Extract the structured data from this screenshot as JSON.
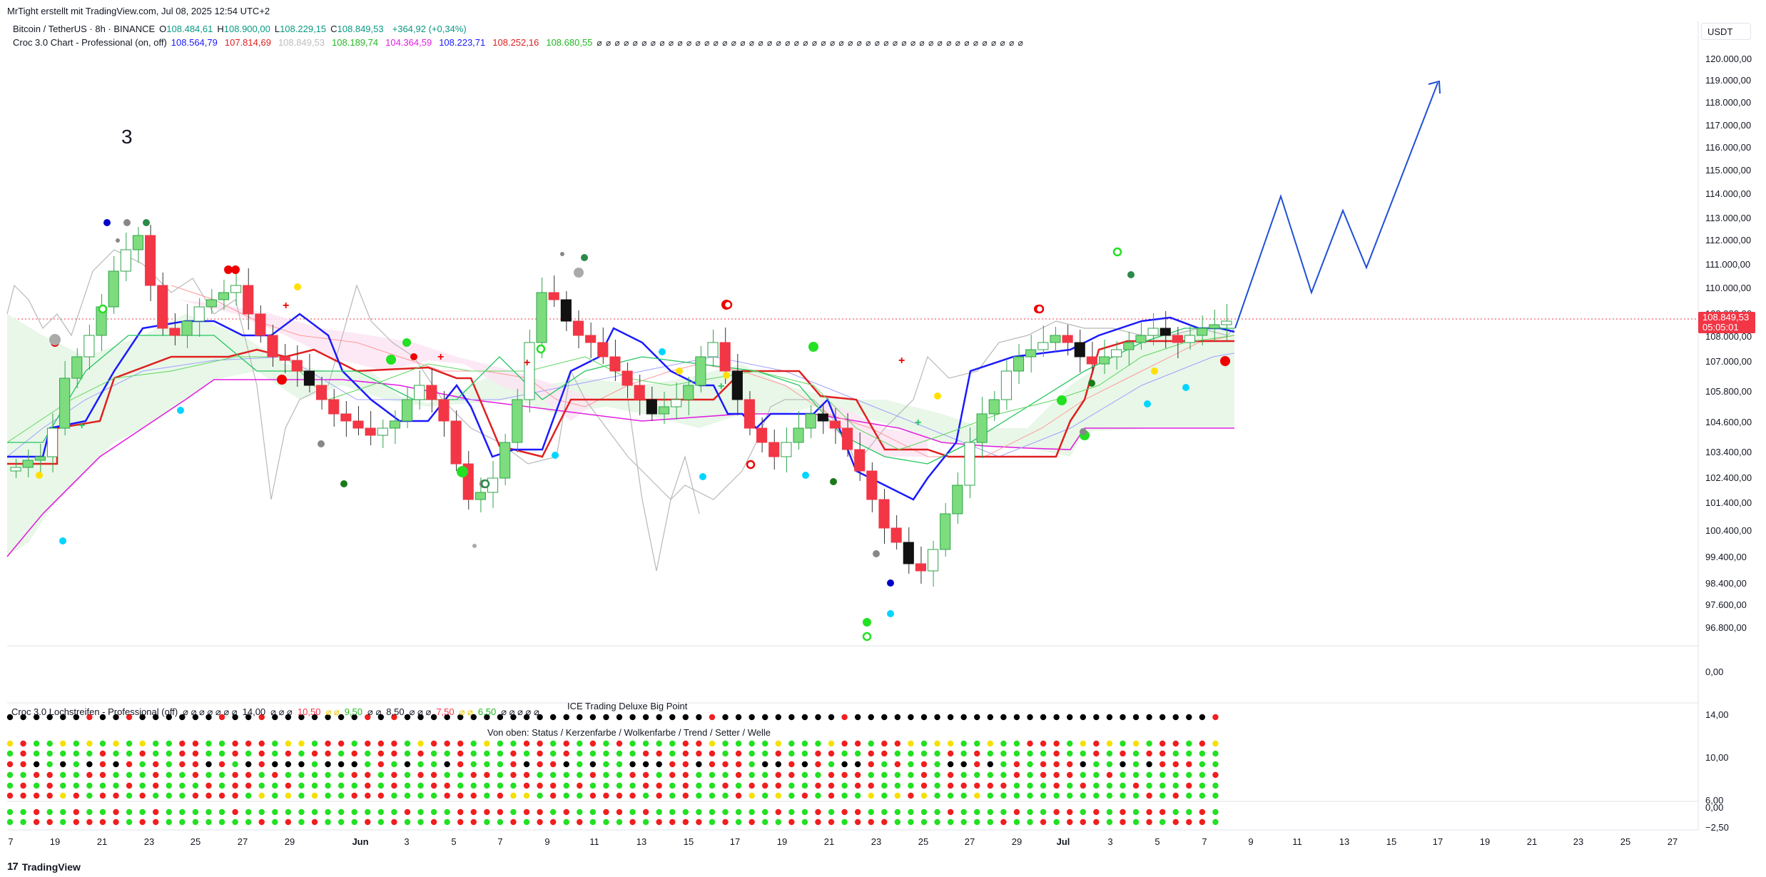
{
  "header": {
    "attribution": "MrTight erstellt mit TradingView.com, Jul 08, 2025 12:54 UTC+2",
    "currency": "USDT"
  },
  "legend": {
    "symbol": "Bitcoin / TetherUS · 8h · BINANCE",
    "ohlc": [
      {
        "label": "O",
        "value": "108.484,61"
      },
      {
        "label": "H",
        "value": "108.900,00"
      },
      {
        "label": "L",
        "value": "108.229,15"
      },
      {
        "label": "C",
        "value": "108.849,53"
      }
    ],
    "change": "+364,92 (+0,34%)",
    "indicator_name": "Croc 3.0 Chart - Professional (on, off)",
    "indicator_values": [
      {
        "value": "108.564,79",
        "color": "#1a1aff"
      },
      {
        "value": "107.814,69",
        "color": "#e02020"
      },
      {
        "value": "108.849,53",
        "color": "#bdbdbd"
      },
      {
        "value": "108.189,74",
        "color": "#22b822"
      },
      {
        "value": "104.364,59",
        "color": "#e020e0"
      },
      {
        "value": "108.223,71",
        "color": "#1a1aff"
      },
      {
        "value": "108.252,16",
        "color": "#e02020"
      },
      {
        "value": "108.680,55",
        "color": "#22b822"
      }
    ],
    "empty_values": "⌀ ⌀ ⌀ ⌀ ⌀ ⌀ ⌀ ⌀ ⌀ ⌀ ⌀ ⌀ ⌀ ⌀ ⌀ ⌀ ⌀ ⌀ ⌀ ⌀ ⌀ ⌀ ⌀ ⌀ ⌀ ⌀ ⌀ ⌀ ⌀ ⌀ ⌀ ⌀ ⌀ ⌀ ⌀ ⌀ ⌀ ⌀ ⌀ ⌀ ⌀ ⌀ ⌀ ⌀ ⌀ ⌀ ⌀ ⌀"
  },
  "annotation_label": "3",
  "price_axis": {
    "ticks": [
      "120.000,00",
      "119.000,00",
      "118.000,00",
      "117.000,00",
      "116.000,00",
      "115.000,00",
      "114.000,00",
      "113.000,00",
      "112.000,00",
      "111.000,00",
      "110.000,00",
      "109.000,00",
      "108.000,00",
      "107.000,00",
      "105.800,00",
      "104.600,00",
      "103.400,00",
      "102.400,00",
      "101.400,00",
      "100.400,00",
      "99.400,00",
      "98.400,00",
      "97.600,00",
      "96.800,00"
    ],
    "current_price": "108.849,53",
    "countdown": "05:05:01"
  },
  "lower_panels": {
    "panel1_axis_tick": "0,00",
    "panel2_name": "Croc 3.0 Lochstreifen - Professional (off)",
    "panel2_values": [
      "⌀ ⌀ ⌀ ⌀ ⌀ ⌀ ⌀",
      "14,00",
      "⌀ ⌀ ⌀",
      "10,50",
      "⌀ ⌀",
      "9,50",
      "⌀ ⌀",
      "8,50",
      "⌀ ⌀ ⌀",
      "7,50",
      "⌀ ⌀",
      "6,50",
      "⌀ ⌀ ⌀ ⌀ ⌀"
    ],
    "panel2_value_colors": [
      "#131722",
      "#131722",
      "#131722",
      "#f23645",
      "#e8c400",
      "#22b822",
      "#131722",
      "#131722",
      "#131722",
      "#f23645",
      "#e8c400",
      "#22b822",
      "#131722"
    ],
    "big_point_label": "ICE Trading Deluxe Big Point",
    "rows_label": "Von oben: Status / Kerzenfarbe / Wolkenfarbe / Trend / Setter / Welle",
    "panel2_ticks": [
      "14,00",
      "10,00",
      "6,00"
    ],
    "panel3_ticks": [
      "0,00",
      "−2,50"
    ]
  },
  "time_axis": {
    "labels": [
      {
        "text": "7",
        "bold": false
      },
      {
        "text": "19",
        "bold": false
      },
      {
        "text": "21",
        "bold": false
      },
      {
        "text": "23",
        "bold": false
      },
      {
        "text": "25",
        "bold": false
      },
      {
        "text": "27",
        "bold": false
      },
      {
        "text": "29",
        "bold": false
      },
      {
        "text": "Jun",
        "bold": true
      },
      {
        "text": "3",
        "bold": false
      },
      {
        "text": "5",
        "bold": false
      },
      {
        "text": "7",
        "bold": false
      },
      {
        "text": "9",
        "bold": false
      },
      {
        "text": "11",
        "bold": false
      },
      {
        "text": "13",
        "bold": false
      },
      {
        "text": "15",
        "bold": false
      },
      {
        "text": "17",
        "bold": false
      },
      {
        "text": "19",
        "bold": false
      },
      {
        "text": "21",
        "bold": false
      },
      {
        "text": "23",
        "bold": false
      },
      {
        "text": "25",
        "bold": false
      },
      {
        "text": "27",
        "bold": false
      },
      {
        "text": "29",
        "bold": false
      },
      {
        "text": "Jul",
        "bold": true
      },
      {
        "text": "3",
        "bold": false
      },
      {
        "text": "5",
        "bold": false
      },
      {
        "text": "7",
        "bold": false
      },
      {
        "text": "9",
        "bold": false
      },
      {
        "text": "11",
        "bold": false
      },
      {
        "text": "13",
        "bold": false
      },
      {
        "text": "15",
        "bold": false
      },
      {
        "text": "17",
        "bold": false
      },
      {
        "text": "19",
        "bold": false
      },
      {
        "text": "21",
        "bold": false
      },
      {
        "text": "23",
        "bold": false
      },
      {
        "text": "25",
        "bold": false
      },
      {
        "text": "27",
        "bold": false
      }
    ]
  },
  "footer": {
    "brand": "TradingView"
  },
  "colors": {
    "bull": "#22c55e",
    "bear": "#f23645",
    "tenkan": "#1a1aff",
    "kijun": "#e02020",
    "lagging": "#bdbdbd",
    "cloud_bull": "#e8f7e8",
    "cloud_bear": "#fbe3f3",
    "projection": "#1f4fd6",
    "status_red": "#f01e1e",
    "status_green": "#22e022",
    "status_black": "#000000",
    "status_yellow": "#f5e000"
  }
}
